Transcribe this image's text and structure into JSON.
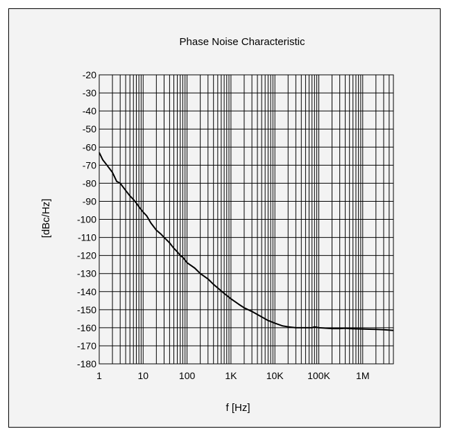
{
  "chart_data": {
    "type": "line",
    "title": "Phase Noise Characteristic",
    "xlabel": "f [Hz]",
    "ylabel": "[dBc/Hz]",
    "x_scale": "log",
    "xlim": [
      1,
      5000000
    ],
    "ylim": [
      -180,
      -20
    ],
    "x_tick_values": [
      1,
      10,
      100,
      1000,
      10000,
      100000,
      1000000
    ],
    "x_tick_labels": [
      "1",
      "10",
      "100",
      "1K",
      "10K",
      "100K",
      "1M"
    ],
    "y_tick_values": [
      -20,
      -30,
      -40,
      -50,
      -60,
      -70,
      -80,
      -90,
      -100,
      -110,
      -120,
      -130,
      -140,
      -150,
      -160,
      -170,
      -180
    ],
    "y_tick_labels": [
      "-20",
      "-30",
      "-40",
      "-50",
      "-60",
      "-70",
      "-80",
      "-90",
      "-100",
      "-110",
      "-120",
      "-130",
      "-140",
      "-150",
      "-160",
      "-170",
      "-180"
    ],
    "grid": true,
    "legend": "none",
    "colors": {
      "line": "#000000",
      "grid": "#000000",
      "background": "#f3f3f3"
    },
    "series": [
      {
        "x": [
          1,
          1.2,
          1.5,
          2,
          2.5,
          3,
          4,
          5,
          6,
          7,
          8,
          10,
          12,
          15,
          20,
          25,
          30,
          40,
          50,
          60,
          70,
          80,
          100,
          150,
          200,
          300,
          400,
          500,
          700,
          1000,
          1500,
          2000,
          3000,
          5000,
          7000,
          10000,
          15000,
          20000,
          30000,
          50000,
          70000,
          80000,
          100000,
          200000,
          300000,
          400000,
          500000,
          700000,
          1000000,
          2000000,
          3000000,
          5000000
        ],
        "y": [
          -63,
          -67,
          -70,
          -74,
          -79,
          -80,
          -84,
          -87,
          -89,
          -91,
          -93,
          -96,
          -98,
          -102,
          -106,
          -108,
          -110,
          -113,
          -116,
          -118,
          -120,
          -121,
          -124,
          -127,
          -130,
          -133,
          -136,
          -138,
          -141,
          -144,
          -147,
          -149,
          -151,
          -154,
          -156,
          -157.5,
          -159,
          -159.5,
          -160,
          -160,
          -160,
          -159.5,
          -160,
          -160.5,
          -160.5,
          -160.3,
          -160.5,
          -160.6,
          -160.7,
          -160.9,
          -161.1,
          -161.5
        ]
      }
    ]
  }
}
